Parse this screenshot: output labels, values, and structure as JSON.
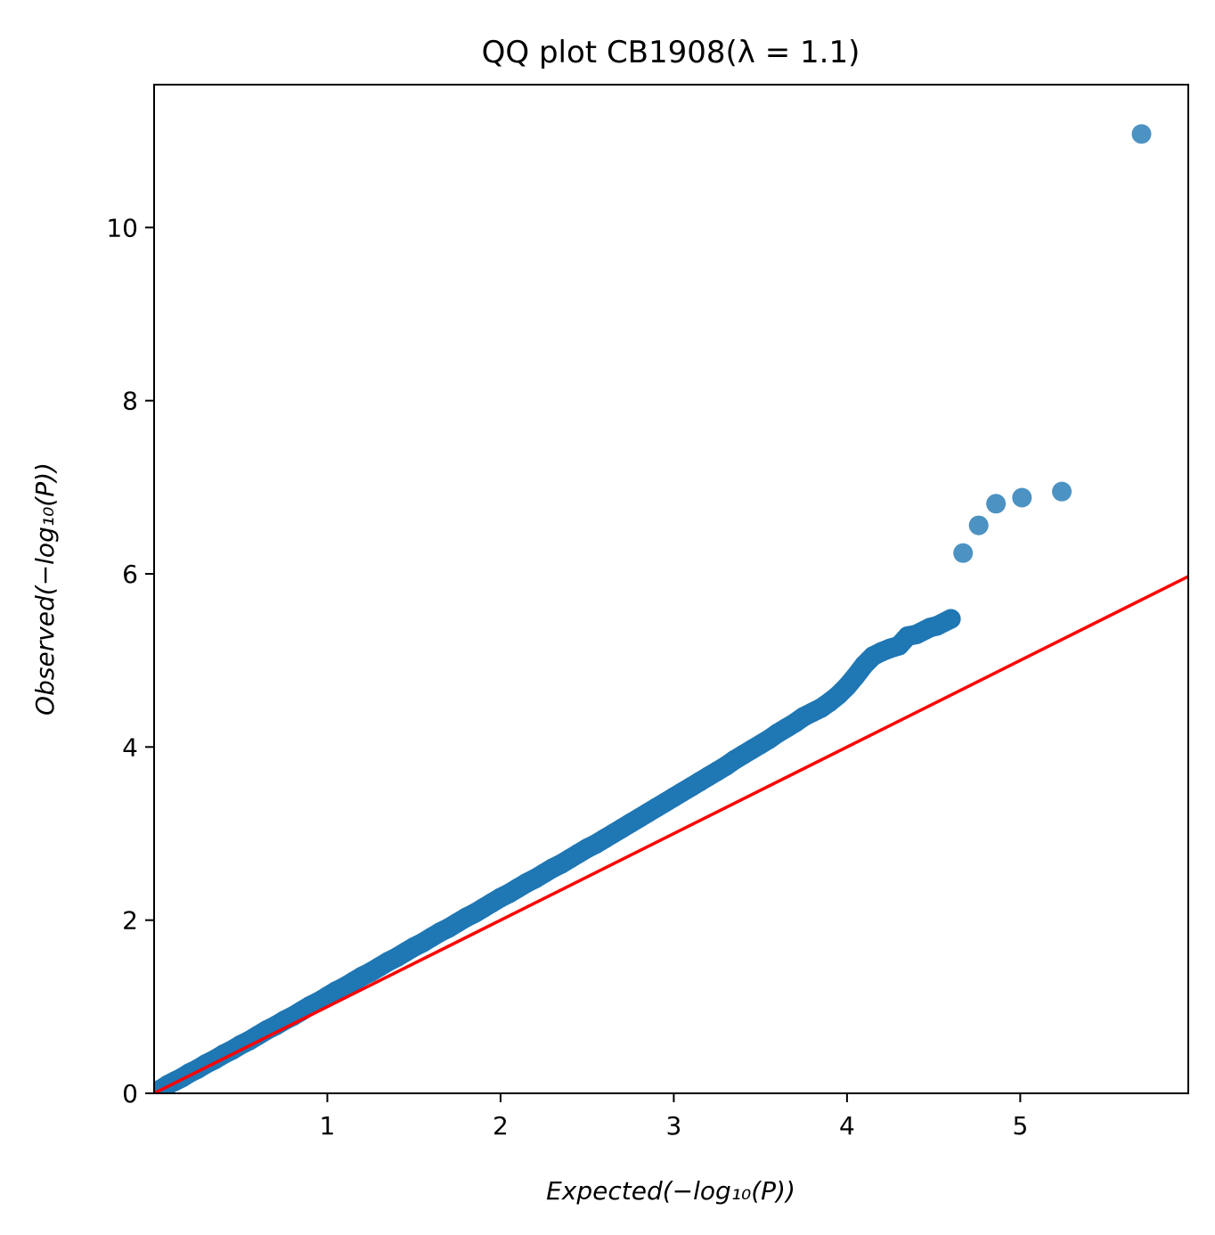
{
  "chart_data": {
    "type": "scatter",
    "title": "QQ plot CB1908(λ = 1.1)",
    "xlabel": "Expected(−log₁₀(P))",
    "ylabel": "Observed(−log₁₀(P))",
    "xlim": [
      0,
      5.97
    ],
    "ylim": [
      0,
      11.65
    ],
    "xticks": [
      1,
      2,
      3,
      4,
      5
    ],
    "yticks": [
      0,
      2,
      4,
      6,
      8,
      10
    ],
    "grid": false,
    "point_color": "#1f77b4",
    "reference_line_color": "#ff0000",
    "reference_line": [
      [
        0,
        0
      ],
      [
        6,
        6
      ]
    ],
    "points": [
      [
        0.02,
        0.03
      ],
      [
        0.05,
        0.06
      ],
      [
        0.08,
        0.1
      ],
      [
        0.12,
        0.14
      ],
      [
        0.16,
        0.18
      ],
      [
        0.2,
        0.23
      ],
      [
        0.25,
        0.28
      ],
      [
        0.3,
        0.34
      ],
      [
        0.35,
        0.39
      ],
      [
        0.4,
        0.45
      ],
      [
        0.45,
        0.5
      ],
      [
        0.5,
        0.56
      ],
      [
        0.55,
        0.61
      ],
      [
        0.6,
        0.67
      ],
      [
        0.65,
        0.73
      ],
      [
        0.7,
        0.78
      ],
      [
        0.75,
        0.84
      ],
      [
        0.8,
        0.89
      ],
      [
        0.85,
        0.95
      ],
      [
        0.9,
        1.01
      ],
      [
        0.95,
        1.06
      ],
      [
        1.0,
        1.12
      ],
      [
        1.05,
        1.18
      ],
      [
        1.1,
        1.23
      ],
      [
        1.15,
        1.29
      ],
      [
        1.2,
        1.35
      ],
      [
        1.25,
        1.4
      ],
      [
        1.3,
        1.46
      ],
      [
        1.35,
        1.52
      ],
      [
        1.4,
        1.57
      ],
      [
        1.45,
        1.63
      ],
      [
        1.5,
        1.69
      ],
      [
        1.55,
        1.74
      ],
      [
        1.6,
        1.8
      ],
      [
        1.65,
        1.86
      ],
      [
        1.7,
        1.91
      ],
      [
        1.75,
        1.97
      ],
      [
        1.8,
        2.03
      ],
      [
        1.85,
        2.08
      ],
      [
        1.9,
        2.14
      ],
      [
        1.95,
        2.2
      ],
      [
        2.0,
        2.26
      ],
      [
        2.05,
        2.31
      ],
      [
        2.1,
        2.37
      ],
      [
        2.15,
        2.43
      ],
      [
        2.2,
        2.48
      ],
      [
        2.25,
        2.54
      ],
      [
        2.3,
        2.6
      ],
      [
        2.35,
        2.65
      ],
      [
        2.4,
        2.71
      ],
      [
        2.45,
        2.77
      ],
      [
        2.5,
        2.83
      ],
      [
        2.55,
        2.88
      ],
      [
        2.6,
        2.94
      ],
      [
        2.65,
        3.0
      ],
      [
        2.7,
        3.06
      ],
      [
        2.75,
        3.12
      ],
      [
        2.8,
        3.18
      ],
      [
        2.85,
        3.24
      ],
      [
        2.9,
        3.3
      ],
      [
        2.95,
        3.36
      ],
      [
        3.0,
        3.42
      ],
      [
        3.05,
        3.48
      ],
      [
        3.1,
        3.54
      ],
      [
        3.15,
        3.6
      ],
      [
        3.2,
        3.66
      ],
      [
        3.25,
        3.72
      ],
      [
        3.3,
        3.78
      ],
      [
        3.35,
        3.85
      ],
      [
        3.4,
        3.91
      ],
      [
        3.45,
        3.97
      ],
      [
        3.5,
        4.03
      ],
      [
        3.55,
        4.09
      ],
      [
        3.6,
        4.16
      ],
      [
        3.65,
        4.22
      ],
      [
        3.7,
        4.28
      ],
      [
        3.75,
        4.35
      ],
      [
        3.8,
        4.4
      ],
      [
        3.85,
        4.45
      ],
      [
        3.9,
        4.52
      ],
      [
        3.95,
        4.6
      ],
      [
        4.0,
        4.7
      ],
      [
        4.05,
        4.82
      ],
      [
        4.1,
        4.95
      ],
      [
        4.15,
        5.05
      ],
      [
        4.2,
        5.1
      ],
      [
        4.25,
        5.14
      ],
      [
        4.3,
        5.17
      ],
      [
        4.35,
        5.28
      ],
      [
        4.4,
        5.3
      ],
      [
        4.48,
        5.38
      ],
      [
        4.52,
        5.4
      ],
      [
        4.6,
        5.48
      ],
      [
        4.67,
        6.24
      ],
      [
        4.76,
        6.56
      ],
      [
        4.86,
        6.81
      ],
      [
        5.01,
        6.88
      ],
      [
        5.24,
        6.95
      ],
      [
        5.7,
        11.08
      ]
    ]
  }
}
